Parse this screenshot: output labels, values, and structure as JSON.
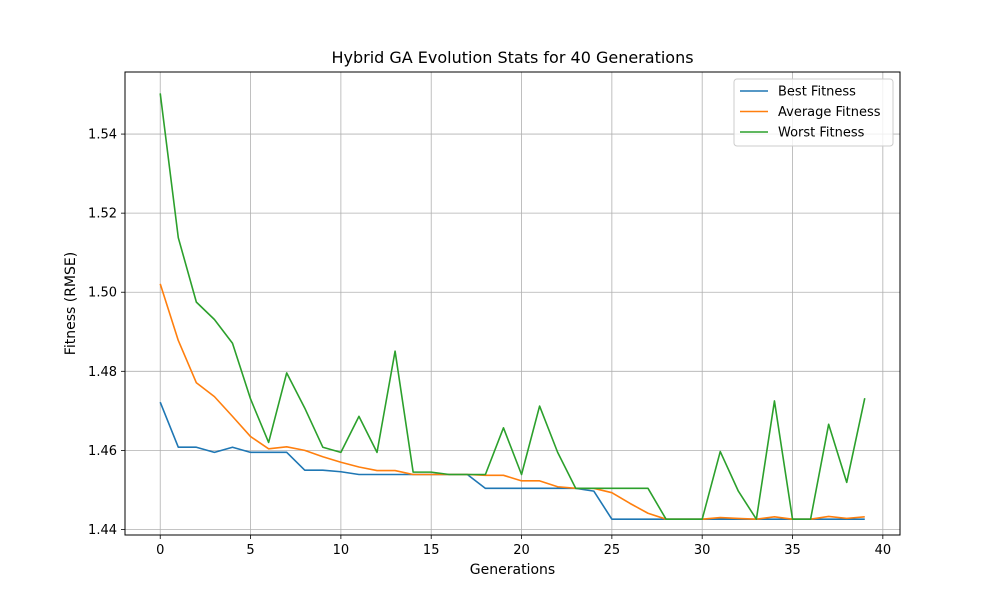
{
  "chart_data": {
    "type": "line",
    "title": "Hybrid GA Evolution Stats for 40 Generations",
    "xlabel": "Generations",
    "ylabel": "Fitness (RMSE)",
    "xlim": [
      -1.95,
      40.95
    ],
    "ylim": [
      1.4386,
      1.5557
    ],
    "xticks": [
      0,
      5,
      10,
      15,
      20,
      25,
      30,
      35,
      40
    ],
    "yticks": [
      1.44,
      1.46,
      1.48,
      1.5,
      1.52,
      1.54
    ],
    "ytick_labels": [
      "1.44",
      "1.46",
      "1.48",
      "1.50",
      "1.52",
      "1.54"
    ],
    "grid": true,
    "legend_position": "top-right",
    "x": [
      0,
      1,
      2,
      3,
      4,
      5,
      6,
      7,
      8,
      9,
      10,
      11,
      12,
      13,
      14,
      15,
      16,
      17,
      18,
      19,
      20,
      21,
      22,
      23,
      24,
      25,
      26,
      27,
      28,
      29,
      30,
      31,
      32,
      33,
      34,
      35,
      36,
      37,
      38,
      39
    ],
    "series": [
      {
        "name": "Best Fitness",
        "color": "#1f77b4",
        "values": [
          1.4722,
          1.4608,
          1.4608,
          1.4595,
          1.4608,
          1.4595,
          1.4595,
          1.4595,
          1.455,
          1.455,
          1.4546,
          1.4539,
          1.4539,
          1.4539,
          1.4539,
          1.4539,
          1.4539,
          1.4539,
          1.4504,
          1.4504,
          1.4504,
          1.4504,
          1.4504,
          1.4504,
          1.4497,
          1.4426,
          1.4426,
          1.4426,
          1.4426,
          1.4426,
          1.4426,
          1.4426,
          1.4426,
          1.4426,
          1.4426,
          1.4426,
          1.4426,
          1.4426,
          1.4426,
          1.4426
        ]
      },
      {
        "name": "Average Fitness",
        "color": "#ff7f0e",
        "values": [
          1.5021,
          1.4878,
          1.4771,
          1.4736,
          1.4686,
          1.4635,
          1.4604,
          1.4609,
          1.46,
          1.4584,
          1.457,
          1.4558,
          1.4549,
          1.4549,
          1.4539,
          1.4539,
          1.4539,
          1.4539,
          1.4537,
          1.4537,
          1.4523,
          1.4523,
          1.4508,
          1.4504,
          1.4504,
          1.4493,
          1.4466,
          1.4441,
          1.4426,
          1.4426,
          1.4426,
          1.443,
          1.4428,
          1.4426,
          1.4432,
          1.4426,
          1.4426,
          1.4433,
          1.4428,
          1.4432
        ]
      },
      {
        "name": "Worst Fitness",
        "color": "#2ca02c",
        "values": [
          1.5503,
          1.5138,
          1.4975,
          1.4931,
          1.4871,
          1.473,
          1.462,
          1.4796,
          1.4707,
          1.4608,
          1.4595,
          1.4686,
          1.4595,
          1.4851,
          1.4545,
          1.4545,
          1.4539,
          1.4539,
          1.4539,
          1.4657,
          1.4539,
          1.4712,
          1.4595,
          1.4504,
          1.4504,
          1.4504,
          1.4504,
          1.4504,
          1.4426,
          1.4426,
          1.4426,
          1.4597,
          1.4497,
          1.4426,
          1.4725,
          1.4426,
          1.4426,
          1.4666,
          1.4519,
          1.4732
        ]
      }
    ]
  }
}
